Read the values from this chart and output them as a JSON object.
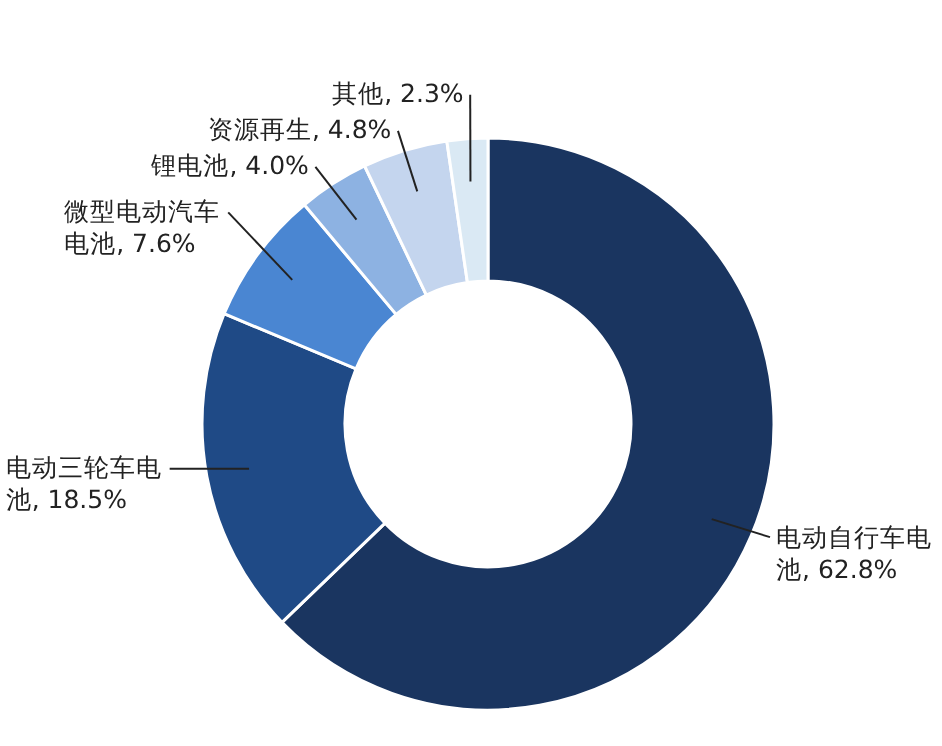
{
  "chart_data": {
    "type": "donut",
    "categories": [
      "电动自行车电池",
      "电动三轮车电池",
      "微型电动汽车电池",
      "锂电池",
      "资源再生",
      "其他"
    ],
    "values": [
      62.8,
      18.5,
      7.6,
      4.0,
      4.8,
      2.3
    ],
    "value_labels": [
      "62.8%",
      "18.5%",
      "7.6%",
      "4.0%",
      "4.8%",
      "2.3%"
    ],
    "colors": [
      "#1a3560",
      "#1f4a86",
      "#4a86d2",
      "#8db2e2",
      "#c4d5ee",
      "#dae9f4"
    ]
  }
}
